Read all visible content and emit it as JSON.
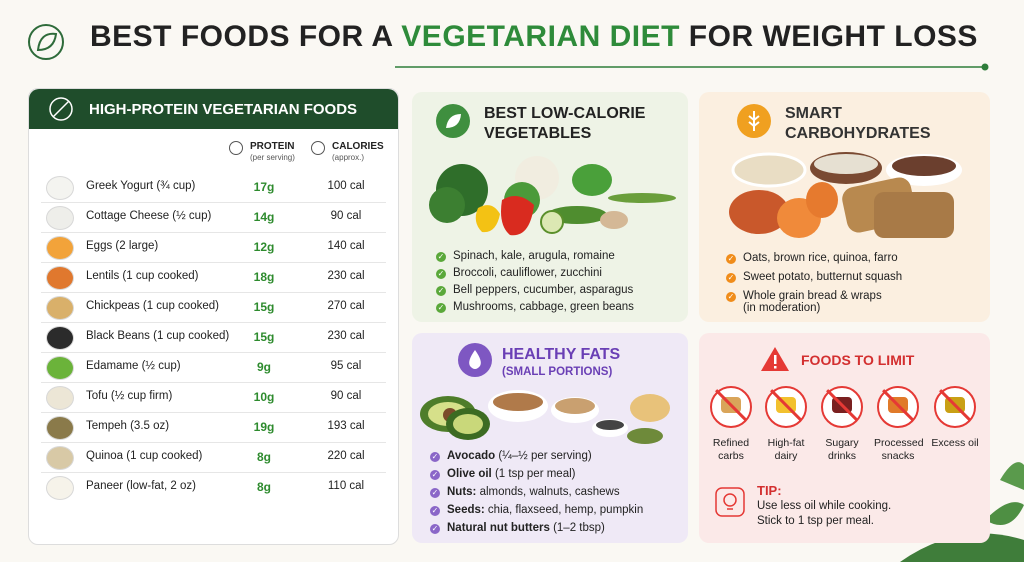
{
  "header": {
    "title_start": "BEST FOODS FOR A",
    "title_highlight": "VEGETARIAN DIET",
    "title_end": "FOR WEIGHT LOSS"
  },
  "protein_table": {
    "title": "HIGH-PROTEIN VEGETARIAN FOODS",
    "columns": [
      {
        "label": "PROTEIN",
        "note": "(per serving)"
      },
      {
        "label": "CALORIES",
        "note": "(approx.)"
      }
    ],
    "rows": [
      [
        "Greek Yogurt (¾ cup)",
        "17g",
        "100 cal"
      ],
      [
        "Cottage Cheese (½ cup)",
        "14g",
        "90 cal"
      ],
      [
        "Eggs (2 large)",
        "12g",
        "140 cal"
      ],
      [
        "Lentils (1 cup cooked)",
        "18g",
        "230 cal"
      ],
      [
        "Chickpeas (1 cup cooked)",
        "15g",
        "270 cal"
      ],
      [
        "Black Beans (1 cup cooked)",
        "15g",
        "230 cal"
      ],
      [
        "Edamame (½ cup)",
        "9g",
        "95 cal"
      ],
      [
        "Tofu (½ cup firm)",
        "10g",
        "90 cal"
      ],
      [
        "Tempeh (3.5 oz)",
        "19g",
        "193 cal"
      ],
      [
        "Quinoa (1 cup cooked)",
        "8g",
        "220 cal"
      ],
      [
        "Paneer (low-fat, 2 oz)",
        "8g",
        "110 cal"
      ]
    ]
  },
  "vegetables": {
    "title": "BEST LOW-CALORIE VEGETABLES",
    "items": [
      "Spinach, kale, arugula, romaine",
      "Broccoli, cauliflower, zucchini",
      "Bell peppers, cucumber, asparagus",
      "Mushrooms, cabbage, green beans"
    ]
  },
  "carbohydrates": {
    "title": "SMART CARBOHYDRATES",
    "items": [
      "Oats, brown rice, quinoa, farro",
      "Sweet potato, butternut squash",
      "Whole grain bread & wraps"
    ],
    "items_note": "(in moderation)"
  },
  "fats": {
    "title": "HEALTHY FATS",
    "subtitle": "(SMALL PORTIONS)",
    "items": [
      {
        "bold": "Avocado",
        "text": "(¼–½ per serving)"
      },
      {
        "bold": "Olive oil",
        "text": "(1 tsp per meal)"
      },
      {
        "bold": "Nuts:",
        "text": "almonds, walnuts, cashews"
      },
      {
        "bold": "Seeds:",
        "text": "chia, flaxseed, hemp, pumpkin"
      },
      {
        "bold": "Natural nut butters",
        "text": "(1–2 tbsp)"
      }
    ]
  },
  "limit": {
    "title": "FOODS TO LIMIT",
    "items": [
      "Refined carbs",
      "High-fat dairy",
      "Sugary drinks",
      "Processed snacks",
      "Excess oil"
    ],
    "tip": {
      "label": "TIP:",
      "lines": [
        "Use less oil while cooking.",
        "Stick to 1 tsp per meal."
      ]
    }
  }
}
